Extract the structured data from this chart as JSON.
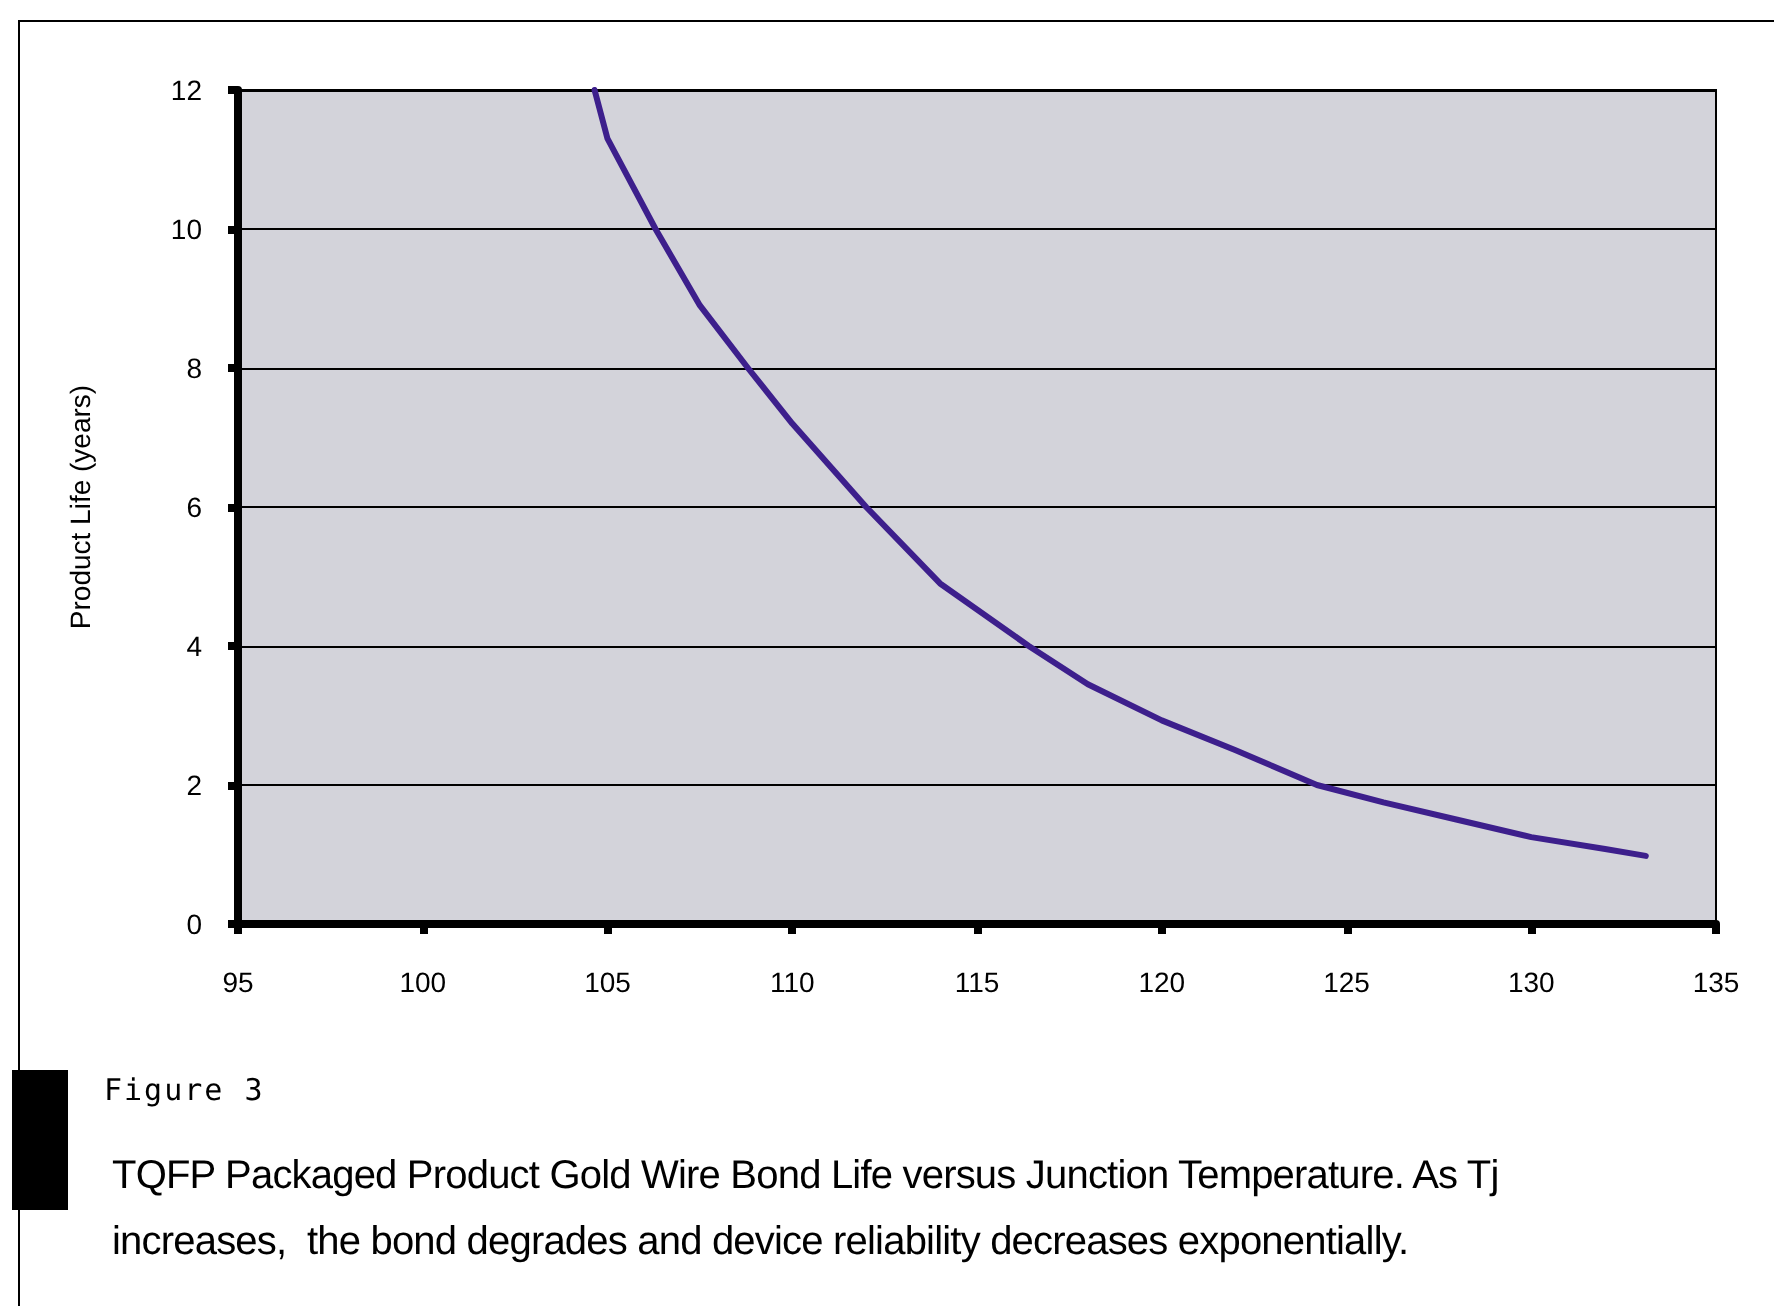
{
  "chart_data": {
    "type": "line",
    "ylabel": "Product Life (years)",
    "x": [
      104.65,
      105,
      106.3,
      107.5,
      108.8,
      110,
      112,
      114,
      116.4,
      118,
      120,
      122,
      124.2,
      126,
      128,
      130,
      132,
      133.1
    ],
    "series": [
      {
        "color": "#3d1f8c",
        "values": [
          12,
          11.3,
          10,
          8.9,
          8,
          7.2,
          6,
          4.9,
          4,
          3.45,
          2.93,
          2.5,
          2,
          1.75,
          1.5,
          1.25,
          1.08,
          0.98
        ]
      }
    ],
    "xlim": [
      95,
      135
    ],
    "xticks": [
      95,
      100,
      105,
      110,
      115,
      120,
      125,
      130,
      135
    ],
    "ylim": [
      0,
      12
    ],
    "yticks": [
      0,
      2,
      4,
      6,
      8,
      10,
      12
    ],
    "grid": "y",
    "marker": "none",
    "line_style": "solid",
    "annotations": [
      "Figure 3",
      "TQFP Packaged Product Gold Wire Bond Life versus Junction Temperature. As Tj increases,  the bond degrades and device reliability decreases exponentially."
    ]
  }
}
